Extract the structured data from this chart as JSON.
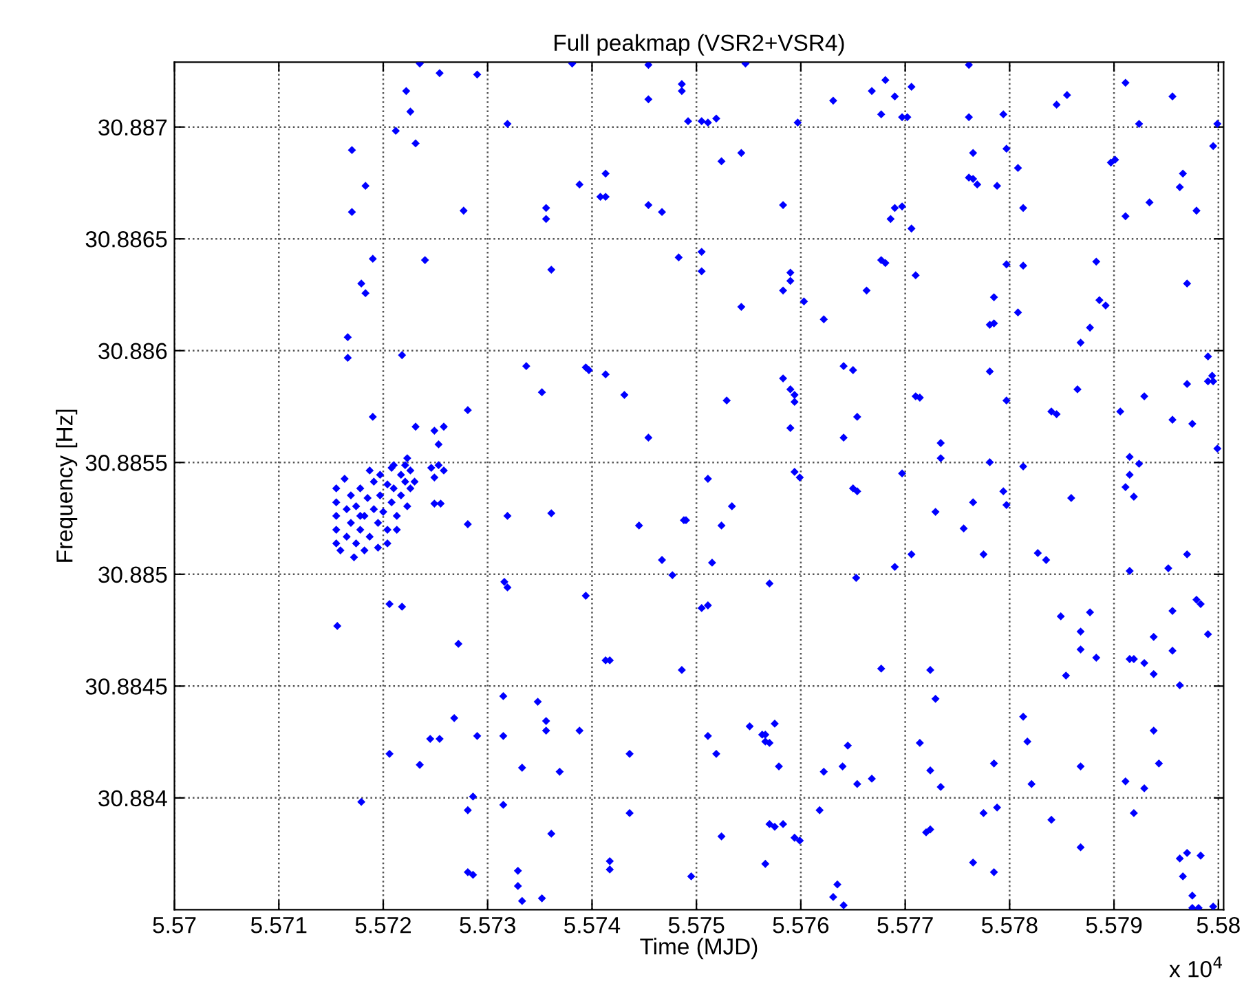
{
  "chart_data": {
    "type": "scatter",
    "title": "Full peakmap (VSR2+VSR4)",
    "xlabel": "Time (MJD)",
    "ylabel": "Frequency [Hz]",
    "xlim": [
      5.57,
      5.58005
    ],
    "ylim": [
      30.8835,
      30.88729
    ],
    "xticks": [
      5.57,
      5.571,
      5.572,
      5.573,
      5.574,
      5.575,
      5.576,
      5.577,
      5.578,
      5.579,
      5.58
    ],
    "yticks": [
      {
        "value": 30.884,
        "label": "30.884"
      },
      {
        "value": 30.8845,
        "label": "30.8845"
      },
      {
        "value": 30.885,
        "label": "30.885"
      },
      {
        "value": 30.8855,
        "label": "30.8855"
      },
      {
        "value": 30.886,
        "label": "30.886"
      },
      {
        "value": 30.8865,
        "label": "30.8865"
      },
      {
        "value": 30.887,
        "label": "30.887"
      }
    ],
    "annotations": [
      "x 10$^{4}$"
    ],
    "grid": true,
    "marker": "diamond",
    "series": [
      {
        "color": "#0000ff",
        "x": [
          5.57235,
          5.57254,
          5.5729,
          5.57222,
          5.57226,
          5.57212,
          5.57231,
          5.5717,
          5.57183,
          5.5717,
          5.57277,
          5.57319,
          5.57381,
          5.57454,
          5.57454,
          5.57486,
          5.57486,
          5.57492,
          5.57413,
          5.57388,
          5.57408,
          5.57413,
          5.57356,
          5.57356,
          5.57454,
          5.57467,
          5.5719,
          5.5724,
          5.57179,
          5.57183,
          5.57361,
          5.57483,
          5.57505,
          5.57505,
          5.57166,
          5.57166,
          5.57218,
          5.57337,
          5.57394,
          5.57397,
          5.57413,
          5.57352,
          5.57431,
          5.5719,
          5.57281,
          5.57231,
          5.57249,
          5.57258,
          5.57253,
          5.57454,
          5.57223,
          5.57246,
          5.57253,
          5.57258,
          5.57249,
          5.57249,
          5.57255,
          5.57163,
          5.57155,
          5.57155,
          5.57155,
          5.57155,
          5.57155,
          5.57159,
          5.57165,
          5.57165,
          5.57169,
          5.57169,
          5.57174,
          5.57174,
          5.57178,
          5.57178,
          5.57182,
          5.57185,
          5.57187,
          5.57191,
          5.57191,
          5.57195,
          5.57197,
          5.57197,
          5.572,
          5.57204,
          5.57204,
          5.57208,
          5.57208,
          5.5721,
          5.57213,
          5.57217,
          5.57217,
          5.57221,
          5.57221,
          5.57223,
          5.57226,
          5.57226,
          5.57204,
          5.57182,
          5.57195,
          5.57213,
          5.57172,
          5.5723,
          5.5721,
          5.57187,
          5.57178,
          5.57281,
          5.57319,
          5.57361,
          5.57445,
          5.57488,
          5.5749,
          5.57467,
          5.57477,
          5.57316,
          5.57319,
          5.57394,
          5.57505,
          5.57206,
          5.57218,
          5.57156,
          5.57272,
          5.57413,
          5.57417,
          5.57486,
          5.57315,
          5.57348,
          5.57356,
          5.57356,
          5.57388,
          5.57268,
          5.57245,
          5.57254,
          5.5729,
          5.57315,
          5.57206,
          5.57235,
          5.57333,
          5.57369,
          5.57436,
          5.57179,
          5.57286,
          5.57281,
          5.57315,
          5.57361,
          5.57436,
          5.57281,
          5.57286,
          5.57329,
          5.57329,
          5.57333,
          5.57352,
          5.57417,
          5.57417,
          5.57495,
          5.57547,
          5.57505,
          5.57511,
          5.57519,
          5.57597,
          5.57631,
          5.57668,
          5.57681,
          5.57677,
          5.5769,
          5.57706,
          5.57697,
          5.57702,
          5.57761,
          5.57761,
          5.57794,
          5.57845,
          5.57855,
          5.57911,
          5.57956,
          5.57924,
          5.57999,
          5.57524,
          5.57543,
          5.57583,
          5.57765,
          5.57761,
          5.57765,
          5.57769,
          5.57797,
          5.57808,
          5.57788,
          5.57813,
          5.5769,
          5.57697,
          5.57686,
          5.57706,
          5.57897,
          5.57901,
          5.57966,
          5.57963,
          5.57934,
          5.57911,
          5.57979,
          5.57995,
          5.57543,
          5.57583,
          5.5759,
          5.5759,
          5.57603,
          5.57622,
          5.57663,
          5.57677,
          5.57681,
          5.5771,
          5.57785,
          5.57781,
          5.57785,
          5.57797,
          5.57813,
          5.57808,
          5.57883,
          5.57886,
          5.57892,
          5.57877,
          5.57868,
          5.5797,
          5.57529,
          5.57583,
          5.5759,
          5.57594,
          5.57594,
          5.5759,
          5.57641,
          5.5765,
          5.57654,
          5.57641,
          5.5771,
          5.57714,
          5.57734,
          5.57734,
          5.57781,
          5.57797,
          5.57865,
          5.5784,
          5.57845,
          5.57906,
          5.57929,
          5.5797,
          5.57956,
          5.57975,
          5.5799,
          5.57994,
          5.5799,
          5.57995,
          5.57999,
          5.57915,
          5.57924,
          5.57511,
          5.57594,
          5.57599,
          5.5765,
          5.57654,
          5.57697,
          5.57781,
          5.57794,
          5.57813,
          5.57915,
          5.57911,
          5.57534,
          5.57524,
          5.57515,
          5.5757,
          5.57511,
          5.57653,
          5.57677,
          5.5769,
          5.57706,
          5.57729,
          5.57765,
          5.57756,
          5.57775,
          5.57797,
          5.57859,
          5.57827,
          5.57835,
          5.57919,
          5.57915,
          5.57952,
          5.5797,
          5.57849,
          5.57877,
          5.57868,
          5.57868,
          5.57883,
          5.57854,
          5.57915,
          5.57919,
          5.57929,
          5.57938,
          5.57956,
          5.57956,
          5.57938,
          5.57963,
          5.57979,
          5.57983,
          5.5799,
          5.57724,
          5.57729,
          5.57511,
          5.57519,
          5.57551,
          5.57563,
          5.57566,
          5.57566,
          5.5757,
          5.57575,
          5.57579,
          5.57645,
          5.57622,
          5.5764,
          5.57654,
          5.57668,
          5.57714,
          5.57724,
          5.57734,
          5.57785,
          5.57813,
          5.57817,
          5.57821,
          5.57868,
          5.57938,
          5.57943,
          5.57911,
          5.57929,
          5.57524,
          5.5757,
          5.57575,
          5.57583,
          5.57566,
          5.57594,
          5.57599,
          5.57618,
          5.57635,
          5.57631,
          5.57641,
          5.5772,
          5.57724,
          5.57775,
          5.57788,
          5.57765,
          5.57785,
          5.5784,
          5.57868,
          5.57919,
          5.57963,
          5.5797,
          5.57983,
          5.57966,
          5.57975,
          5.57975,
          5.57981,
          5.57995
        ],
        "values": [
          30.887284,
          30.887241,
          30.887235,
          30.887161,
          30.887069,
          30.886983,
          30.886927,
          30.886897,
          30.886737,
          30.88662,
          30.886626,
          30.887014,
          30.887284,
          30.887278,
          30.887124,
          30.887192,
          30.887161,
          30.887026,
          30.886792,
          30.886743,
          30.886688,
          30.886688,
          30.886638,
          30.886589,
          30.886651,
          30.88662,
          30.886411,
          30.886405,
          30.8863,
          30.886257,
          30.886362,
          30.886417,
          30.886442,
          30.886355,
          30.88606,
          30.885968,
          30.88598,
          30.885931,
          30.885925,
          30.885913,
          30.885894,
          30.885814,
          30.885802,
          30.885704,
          30.885734,
          30.88566,
          30.885642,
          30.88566,
          30.885581,
          30.885611,
          30.885519,
          30.885476,
          30.885488,
          30.885464,
          30.885433,
          30.885316,
          30.885316,
          30.885427,
          30.885384,
          30.885322,
          30.885261,
          30.885199,
          30.885138,
          30.885107,
          30.885291,
          30.885168,
          30.885353,
          30.88523,
          30.885304,
          30.885138,
          30.885384,
          30.885199,
          30.885261,
          30.885341,
          30.885168,
          30.885414,
          30.885291,
          30.88523,
          30.885445,
          30.885353,
          30.885279,
          30.885402,
          30.885199,
          30.885476,
          30.885322,
          30.885384,
          30.885261,
          30.885445,
          30.885353,
          30.885488,
          30.885414,
          30.885304,
          30.885464,
          30.885384,
          30.885138,
          30.885107,
          30.885119,
          30.885199,
          30.885076,
          30.885414,
          30.885488,
          30.885464,
          30.885261,
          30.885224,
          30.885261,
          30.885273,
          30.885218,
          30.885242,
          30.885242,
          30.885064,
          30.884996,
          30.884966,
          30.884941,
          30.884904,
          30.884849,
          30.884867,
          30.884855,
          30.884769,
          30.884689,
          30.884615,
          30.884615,
          30.884572,
          30.884455,
          30.88443,
          30.884344,
          30.884301,
          30.884301,
          30.884357,
          30.884264,
          30.884264,
          30.884277,
          30.884277,
          30.884197,
          30.884148,
          30.884135,
          30.884117,
          30.884197,
          30.883982,
          30.884006,
          30.883945,
          30.883969,
          30.88384,
          30.883932,
          30.883668,
          30.883656,
          30.883674,
          30.883606,
          30.883539,
          30.883551,
          30.883717,
          30.88368,
          30.883649,
          30.887284,
          30.887026,
          30.88702,
          30.887038,
          30.88702,
          30.887118,
          30.887161,
          30.88721,
          30.887057,
          30.887137,
          30.88718,
          30.887044,
          30.887044,
          30.887278,
          30.887044,
          30.887057,
          30.8871,
          30.887143,
          30.887198,
          30.887137,
          30.887014,
          30.887014,
          30.886847,
          30.886884,
          30.886651,
          30.886884,
          30.886774,
          30.886768,
          30.886743,
          30.886903,
          30.886817,
          30.886737,
          30.886638,
          30.886638,
          30.886645,
          30.886589,
          30.886546,
          30.886841,
          30.886854,
          30.886792,
          30.886731,
          30.886663,
          30.886601,
          30.886626,
          30.886915,
          30.886196,
          30.886269,
          30.886349,
          30.886312,
          30.88622,
          30.88614,
          30.886269,
          30.886405,
          30.886392,
          30.886337,
          30.886239,
          30.886116,
          30.886122,
          30.886386,
          30.88638,
          30.886171,
          30.886398,
          30.886226,
          30.886202,
          30.886103,
          30.886036,
          30.8863,
          30.885777,
          30.885876,
          30.885827,
          30.885802,
          30.885771,
          30.885654,
          30.885931,
          30.885913,
          30.885704,
          30.885611,
          30.885796,
          30.88579,
          30.885587,
          30.885519,
          30.885907,
          30.885777,
          30.885827,
          30.885728,
          30.885716,
          30.885728,
          30.885796,
          30.885851,
          30.885691,
          30.885673,
          30.885974,
          30.885888,
          30.885863,
          30.885863,
          30.885562,
          30.885525,
          30.885494,
          30.885427,
          30.885458,
          30.885433,
          30.885384,
          30.885371,
          30.885451,
          30.885501,
          30.885371,
          30.885482,
          30.885445,
          30.88539,
          30.885304,
          30.885218,
          30.885052,
          30.884959,
          30.884861,
          30.884984,
          30.884578,
          30.885033,
          30.885089,
          30.885279,
          30.885322,
          30.885205,
          30.885089,
          30.88531,
          30.885341,
          30.885095,
          30.885064,
          30.885347,
          30.885015,
          30.885027,
          30.885089,
          30.884812,
          30.88483,
          30.884744,
          30.884664,
          30.884627,
          30.884547,
          30.884621,
          30.884621,
          30.884603,
          30.88472,
          30.884836,
          30.884658,
          30.884554,
          30.884504,
          30.884886,
          30.884867,
          30.884732,
          30.884572,
          30.884443,
          30.884277,
          30.884197,
          30.88432,
          30.884283,
          30.884283,
          30.884252,
          30.884246,
          30.884332,
          30.884141,
          30.884234,
          30.884117,
          30.884141,
          30.884062,
          30.884086,
          30.884246,
          30.884123,
          30.884049,
          30.884154,
          30.884363,
          30.884252,
          30.884062,
          30.884141,
          30.884301,
          30.884154,
          30.884074,
          30.884043,
          30.883828,
          30.883883,
          30.883871,
          30.883883,
          30.883705,
          30.883822,
          30.883809,
          30.883945,
          30.883613,
          30.883557,
          30.88352,
          30.883846,
          30.883859,
          30.883932,
          30.883957,
          30.883711,
          30.883668,
          30.883902,
          30.883779,
          30.883932,
          30.883729,
          30.883754,
          30.883742,
          30.883649,
          30.883563,
          30.883508,
          30.883508,
          30.883514
        ]
      }
    ]
  }
}
